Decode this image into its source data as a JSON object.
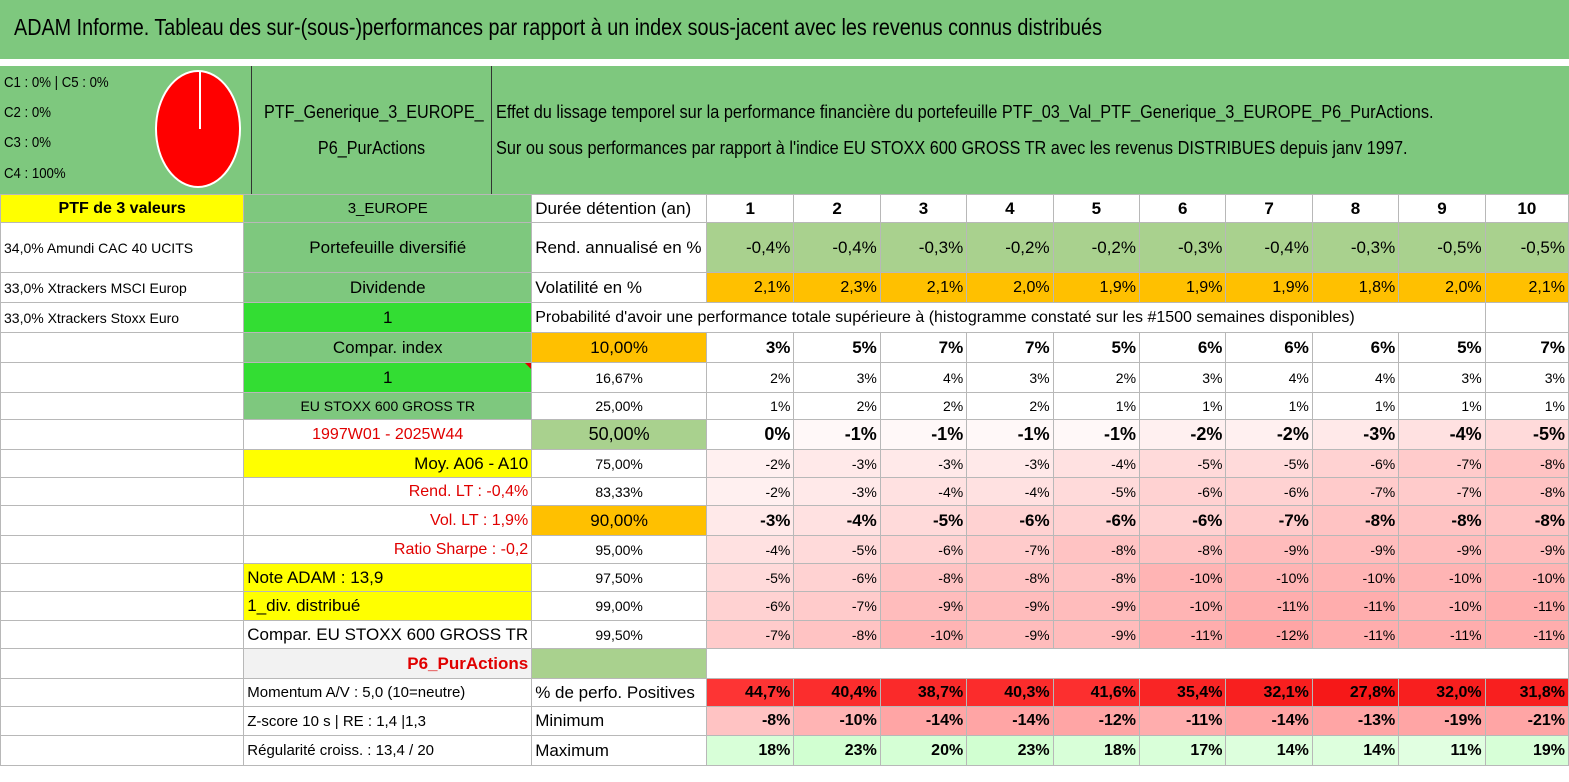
{
  "title": "ADAM Informe. Tableau des sur-(sous-)performances par rapport à un index sous-jacent avec les revenus connus distribués",
  "classes": [
    "C1 : 0% | C5 : 0%",
    "C2 : 0%",
    "C3 : 0%",
    "C4 : 100%"
  ],
  "pie": {
    "color": "#ff0000",
    "c4_share": 1.0
  },
  "portfolio_name_line1": "PTF_Generique_3_EUROPE_",
  "portfolio_name_line2": "P6_PurActions",
  "description_line1": "Effet du lissage temporel sur la performance financière du portefeuille PTF_03_Val_PTF_Generique_3_EUROPE_P6_PurActions.",
  "description_line2": "Sur ou sous performances par rapport à l'indice EU STOXX 600 GROSS TR avec les revenus DISTRIBUES depuis janv 1997.",
  "left_col": [
    "PTF de 3 valeurs",
    "34,0% Amundi CAC 40 UCITS",
    "33,0% Xtrackers MSCI Europ",
    "33,0% Xtrackers Stoxx Euro"
  ],
  "mid_col": {
    "region": "3_EUROPE",
    "type": "Portefeuille diversifié",
    "dividend": "Dividende",
    "one_a": "1",
    "compar": "Compar. index",
    "one_b": "1",
    "index": "EU STOXX 600 GROSS TR",
    "period": "1997W01 - 2025W44",
    "moy": "Moy. A06 - A10",
    "rend_lt": "Rend. LT : -0,4%",
    "vol_lt": "Vol. LT : 1,9%",
    "sharpe": "Ratio Sharpe : -0,2",
    "note": "Note ADAM : 13,9",
    "div": "1_div. distribué",
    "compar_index": "Compar. EU STOXX 600 GROSS TR",
    "strategy": "P6_PurActions",
    "momentum": "Momentum A/V : 5,0 (10=neutre)",
    "zscore": "Z-score 10 s | RE : 1,4 |1,3",
    "regularite": "Régularité croiss. : 13,4 / 20"
  },
  "labels": {
    "duree": "Durée détention (an)",
    "rend": "Rend. annualisé en %",
    "vol": "Volatilité en %",
    "proba": "Probabilité d'avoir une performance totale supérieure à (histogramme constaté sur les #1500 semaines disponibles)",
    "positives": "% de perfo. Positives",
    "minimum": "Minimum",
    "maximum": "Maximum"
  },
  "years": [
    "1",
    "2",
    "3",
    "4",
    "5",
    "6",
    "7",
    "8",
    "9",
    "10"
  ],
  "rend": [
    "-0,4%",
    "-0,4%",
    "-0,3%",
    "-0,2%",
    "-0,2%",
    "-0,3%",
    "-0,4%",
    "-0,3%",
    "-0,5%",
    "-0,5%"
  ],
  "vol": [
    "2,1%",
    "2,3%",
    "2,1%",
    "2,0%",
    "1,9%",
    "1,9%",
    "1,9%",
    "1,8%",
    "2,0%",
    "2,1%"
  ],
  "quantiles": [
    {
      "q": "10,00%",
      "vals": [
        "3%",
        "5%",
        "7%",
        "7%",
        "5%",
        "6%",
        "6%",
        "6%",
        "5%",
        "7%"
      ]
    },
    {
      "q": "16,67%",
      "vals": [
        "2%",
        "3%",
        "4%",
        "3%",
        "2%",
        "3%",
        "4%",
        "4%",
        "3%",
        "3%"
      ]
    },
    {
      "q": "25,00%",
      "vals": [
        "1%",
        "2%",
        "2%",
        "2%",
        "1%",
        "1%",
        "1%",
        "1%",
        "1%",
        "1%"
      ]
    },
    {
      "q": "50,00%",
      "vals": [
        "0%",
        "-1%",
        "-1%",
        "-1%",
        "-1%",
        "-2%",
        "-2%",
        "-3%",
        "-4%",
        "-5%"
      ]
    },
    {
      "q": "75,00%",
      "vals": [
        "-2%",
        "-3%",
        "-3%",
        "-3%",
        "-4%",
        "-5%",
        "-5%",
        "-6%",
        "-7%",
        "-8%"
      ]
    },
    {
      "q": "83,33%",
      "vals": [
        "-2%",
        "-3%",
        "-4%",
        "-4%",
        "-5%",
        "-6%",
        "-6%",
        "-7%",
        "-7%",
        "-8%"
      ]
    },
    {
      "q": "90,00%",
      "vals": [
        "-3%",
        "-4%",
        "-5%",
        "-6%",
        "-6%",
        "-6%",
        "-7%",
        "-8%",
        "-8%",
        "-8%"
      ]
    },
    {
      "q": "95,00%",
      "vals": [
        "-4%",
        "-5%",
        "-6%",
        "-7%",
        "-8%",
        "-8%",
        "-9%",
        "-9%",
        "-9%",
        "-9%"
      ]
    },
    {
      "q": "97,50%",
      "vals": [
        "-5%",
        "-6%",
        "-8%",
        "-8%",
        "-8%",
        "-10%",
        "-10%",
        "-10%",
        "-10%",
        "-10%"
      ]
    },
    {
      "q": "99,00%",
      "vals": [
        "-6%",
        "-7%",
        "-9%",
        "-9%",
        "-9%",
        "-10%",
        "-11%",
        "-11%",
        "-10%",
        "-11%"
      ]
    },
    {
      "q": "99,50%",
      "vals": [
        "-7%",
        "-8%",
        "-10%",
        "-9%",
        "-9%",
        "-11%",
        "-12%",
        "-11%",
        "-11%",
        "-11%"
      ]
    }
  ],
  "positives": [
    "44,7%",
    "40,4%",
    "38,7%",
    "40,3%",
    "41,6%",
    "35,4%",
    "32,1%",
    "27,8%",
    "32,0%",
    "31,8%"
  ],
  "minimum": [
    "-8%",
    "-10%",
    "-14%",
    "-14%",
    "-12%",
    "-11%",
    "-14%",
    "-13%",
    "-19%",
    "-21%"
  ],
  "maximum": [
    "18%",
    "23%",
    "20%",
    "23%",
    "18%",
    "17%",
    "14%",
    "14%",
    "11%",
    "19%"
  ],
  "colors": {
    "green": "#7ec87e",
    "yellow": "#ffff00",
    "lime": "#33dd33",
    "orange": "#ffc000",
    "red": "#e00000"
  }
}
